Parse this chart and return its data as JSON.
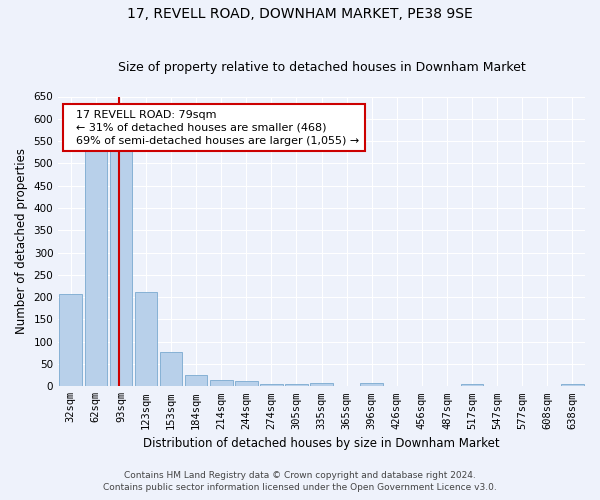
{
  "title": "17, REVELL ROAD, DOWNHAM MARKET, PE38 9SE",
  "subtitle": "Size of property relative to detached houses in Downham Market",
  "xlabel": "Distribution of detached houses by size in Downham Market",
  "ylabel": "Number of detached properties",
  "footer_line1": "Contains HM Land Registry data © Crown copyright and database right 2024.",
  "footer_line2": "Contains public sector information licensed under the Open Government Licence v3.0.",
  "categories": [
    "32sqm",
    "62sqm",
    "93sqm",
    "123sqm",
    "153sqm",
    "184sqm",
    "214sqm",
    "244sqm",
    "274sqm",
    "305sqm",
    "335sqm",
    "365sqm",
    "396sqm",
    "426sqm",
    "456sqm",
    "487sqm",
    "517sqm",
    "547sqm",
    "577sqm",
    "608sqm",
    "638sqm"
  ],
  "values": [
    208,
    530,
    530,
    212,
    78,
    26,
    15,
    12,
    5,
    5,
    8,
    0,
    7,
    0,
    0,
    0,
    6,
    0,
    0,
    0,
    5
  ],
  "bar_color": "#b8d0ea",
  "bar_edge_color": "#7aaad0",
  "ylim": [
    0,
    650
  ],
  "yticks": [
    0,
    50,
    100,
    150,
    200,
    250,
    300,
    350,
    400,
    450,
    500,
    550,
    600,
    650
  ],
  "vline_color": "#cc0000",
  "vline_x": 1.93,
  "annotation_line1": "  17 REVELL ROAD: 79sqm",
  "annotation_line2": "  ← 31% of detached houses are smaller (468)",
  "annotation_line3": "  69% of semi-detached houses are larger (1,055) →",
  "annotation_box_color": "#ffffff",
  "annotation_box_edge": "#cc0000",
  "background_color": "#eef2fb",
  "grid_color": "#ffffff",
  "title_fontsize": 10,
  "subtitle_fontsize": 9,
  "axis_label_fontsize": 8.5,
  "tick_fontsize": 7.5,
  "annotation_fontsize": 8,
  "ylabel_fontsize": 8.5
}
